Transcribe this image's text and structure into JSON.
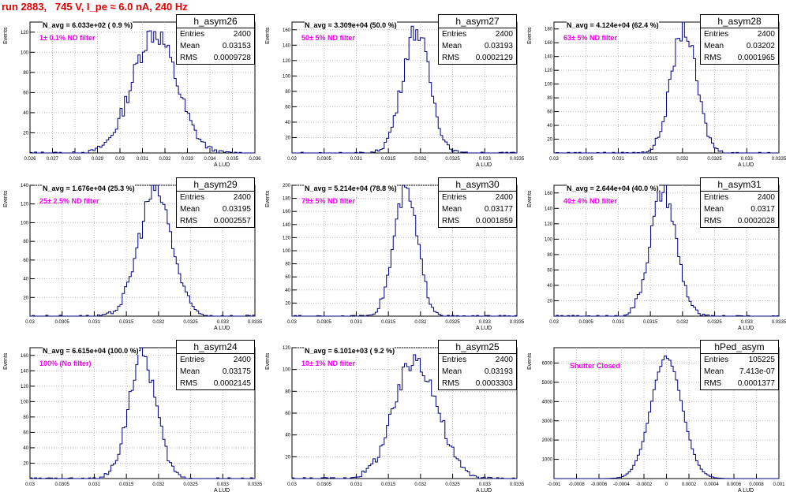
{
  "page_title": "run 2883,   745 V, I_pe ≈ 6.0 nA, 240 Hz",
  "stat_labels": {
    "entries": "Entries",
    "mean": "Mean",
    "rms": "RMS"
  },
  "chart_data": [
    {
      "type": "histogram",
      "name": "h_asym26",
      "xlabel": "A_LUD",
      "ylabel": "Events",
      "xlim": [
        0.026,
        0.036
      ],
      "ylim": [
        0,
        130
      ],
      "xticks": [
        "0.026",
        "0.027",
        "0.028",
        "0.029",
        "0.03",
        "0.031",
        "0.032",
        "0.033",
        "0.034",
        "0.035",
        "0.036"
      ],
      "yticks": [
        "20",
        "40",
        "60",
        "80",
        "100",
        "120"
      ],
      "entries": "2400",
      "mean": "0.03153",
      "rms": "0.0009728",
      "mean_val": 0.03153,
      "rms_val": 0.0009728,
      "peak": 120,
      "navg": "N_avg = 6.033e+02 ( 0.9 %)",
      "filter": "1± 0.1% ND filter"
    },
    {
      "type": "histogram",
      "name": "h_asym27",
      "xlabel": "A_LUD",
      "ylabel": "Events",
      "xlim": [
        0.03,
        0.0335
      ],
      "ylim": [
        0,
        170
      ],
      "xticks": [
        "0.03",
        "0.0305",
        "0.031",
        "0.0315",
        "0.032",
        "0.0325",
        "0.033",
        "0.0335"
      ],
      "yticks": [
        "20",
        "40",
        "60",
        "80",
        "100",
        "120",
        "140",
        "160"
      ],
      "entries": "2400",
      "mean": "0.03193",
      "rms": "0.0002129",
      "mean_val": 0.03193,
      "rms_val": 0.0002129,
      "peak": 160,
      "navg": "N_avg = 3.309e+04 (50.0 %)",
      "filter": "50± 5% ND filter"
    },
    {
      "type": "histogram",
      "name": "h_asym28",
      "xlabel": "A_LUD",
      "ylabel": "Events",
      "xlim": [
        0.03,
        0.0335
      ],
      "ylim": [
        0,
        190
      ],
      "xticks": [
        "0.03",
        "0.0305",
        "0.031",
        "0.0315",
        "0.032",
        "0.0325",
        "0.033",
        "0.0335"
      ],
      "yticks": [
        "20",
        "40",
        "60",
        "80",
        "100",
        "120",
        "140",
        "160",
        "180"
      ],
      "entries": "2400",
      "mean": "0.03202",
      "rms": "0.0001965",
      "mean_val": 0.03202,
      "rms_val": 0.0001965,
      "peak": 180,
      "navg": "N_avg = 4.124e+04 (62.4 %)",
      "filter": "63± 5% ND filter"
    },
    {
      "type": "histogram",
      "name": "h_asym29",
      "xlabel": "A_LUD",
      "ylabel": "Events",
      "xlim": [
        0.03,
        0.0335
      ],
      "ylim": [
        0,
        140
      ],
      "xticks": [
        "0.03",
        "0.0305",
        "0.031",
        "0.0315",
        "0.032",
        "0.0325",
        "0.033",
        "0.0335"
      ],
      "yticks": [
        "20",
        "40",
        "60",
        "80",
        "100",
        "120",
        "140"
      ],
      "entries": "2400",
      "mean": "0.03195",
      "rms": "0.0002557",
      "mean_val": 0.03195,
      "rms_val": 0.0002557,
      "peak": 135,
      "navg": "N_avg = 1.676e+04 (25.3 %)",
      "filter": "25± 2.5% ND filter"
    },
    {
      "type": "histogram",
      "name": "h_asym30",
      "xlabel": "A_LUD",
      "ylabel": "Events",
      "xlim": [
        0.03,
        0.0335
      ],
      "ylim": [
        0,
        200
      ],
      "xticks": [
        "0.03",
        "0.0305",
        "0.031",
        "0.0315",
        "0.032",
        "0.0325",
        "0.033",
        "0.0335"
      ],
      "yticks": [
        "20",
        "40",
        "60",
        "80",
        "100",
        "120",
        "140",
        "160",
        "180",
        "200"
      ],
      "entries": "2400",
      "mean": "0.03177",
      "rms": "0.0001859",
      "mean_val": 0.03177,
      "rms_val": 0.0001859,
      "peak": 190,
      "navg": "N_avg = 5.214e+04 (78.8 %)",
      "filter": "79± 5% ND filter"
    },
    {
      "type": "histogram",
      "name": "h_asym31",
      "xlabel": "A_LUD",
      "ylabel": "Events",
      "xlim": [
        0.03,
        0.0335
      ],
      "ylim": [
        0,
        170
      ],
      "xticks": [
        "0.03",
        "0.0305",
        "0.031",
        "0.0315",
        "0.032",
        "0.0325",
        "0.033",
        "0.0335"
      ],
      "yticks": [
        "20",
        "40",
        "60",
        "80",
        "100",
        "120",
        "140",
        "160"
      ],
      "entries": "2400",
      "mean": "0.0317",
      "rms": "0.0002028",
      "mean_val": 0.0317,
      "rms_val": 0.0002028,
      "peak": 160,
      "navg": "N_avg = 2.644e+04 (40.0 %)",
      "filter": "40± 4% ND filter"
    },
    {
      "type": "histogram",
      "name": "h_asym24",
      "xlabel": "A_LUD",
      "ylabel": "Events",
      "xlim": [
        0.03,
        0.0335
      ],
      "ylim": [
        0,
        170
      ],
      "xticks": [
        "0.03",
        "0.0305",
        "0.031",
        "0.0315",
        "0.032",
        "0.0325",
        "0.033",
        "0.0335"
      ],
      "yticks": [
        "20",
        "40",
        "60",
        "80",
        "100",
        "120",
        "140",
        "160"
      ],
      "entries": "2400",
      "mean": "0.03175",
      "rms": "0.0002145",
      "mean_val": 0.03175,
      "rms_val": 0.0002145,
      "peak": 160,
      "navg": "N_avg = 6.615e+04 (100.0 %)",
      "filter": "100% (No filter)"
    },
    {
      "type": "histogram",
      "name": "h_asym25",
      "xlabel": "A_LUD",
      "ylabel": "Events",
      "xlim": [
        0.03,
        0.0335
      ],
      "ylim": [
        0,
        120
      ],
      "xticks": [
        "0.03",
        "0.0305",
        "0.031",
        "0.0315",
        "0.032",
        "0.0325",
        "0.033",
        "0.0335"
      ],
      "yticks": [
        "20",
        "40",
        "60",
        "80",
        "100",
        "120"
      ],
      "entries": "2400",
      "mean": "0.03193",
      "rms": "0.0003303",
      "mean_val": 0.03193,
      "rms_val": 0.0003303,
      "peak": 110,
      "navg": "N_avg = 6.101e+03 ( 9.2 %)",
      "filter": "10± 1% ND filter"
    },
    {
      "type": "histogram",
      "name": "hPed_asym",
      "xlabel": "A_LUD",
      "ylabel": "Events",
      "xlim": [
        -0.001,
        0.001
      ],
      "ylim": [
        0,
        6800
      ],
      "xticks": [
        "-0.001",
        "-0.0008",
        "-0.0006",
        "-0.0004",
        "-0.0002",
        "0",
        "0.0002",
        "0.0004",
        "0.0006",
        "0.0008",
        "0.001"
      ],
      "yticks": [
        "1000",
        "2000",
        "3000",
        "4000",
        "5000",
        "6000"
      ],
      "entries": "105225",
      "mean": "7.413e-07",
      "rms": "0.0001377",
      "mean_val": 7.413e-07,
      "rms_val": 0.0001377,
      "peak": 6300,
      "navg": "",
      "filter": "Shutter Closed"
    }
  ]
}
